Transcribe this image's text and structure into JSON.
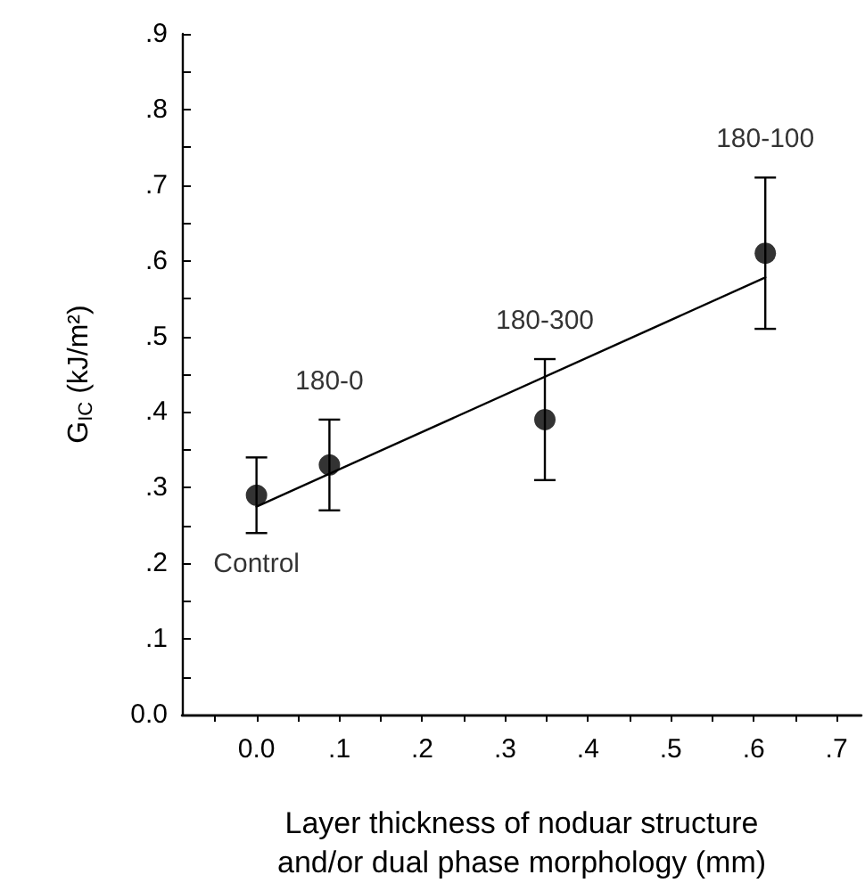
{
  "chart_data": {
    "type": "scatter",
    "xlabel": "Layer thickness of noduar structure\nand/or dual phase morphology (mm)",
    "ylabel": "G$_{IC}$ (kJ/m²)",
    "x": [
      0.0,
      0.088,
      0.348,
      0.614
    ],
    "series": [
      {
        "color": "#000000",
        "marker": "circle",
        "values": [
          0.29,
          0.33,
          0.39,
          0.61
        ],
        "errors": [
          [
            0.24,
            0.34
          ],
          [
            0.27,
            0.39
          ],
          [
            0.31,
            0.47
          ],
          [
            0.51,
            0.71
          ]
        ]
      },
      {
        "type": "line",
        "color": "#000000",
        "marker": "none",
        "line_style": "solid",
        "x": [
          0.0,
          0.614
        ],
        "values": [
          0.275,
          0.578
        ]
      }
    ],
    "annotations": [
      "Control",
      "180-0",
      "180-300",
      "180-100"
    ],
    "xlim": [
      -0.09,
      0.73
    ],
    "xticks": [
      {
        "value": -0.05,
        "label": null
      },
      {
        "value": 0.0,
        "label": "0.0"
      },
      {
        "value": 0.05,
        "label": null
      },
      {
        "value": 0.1,
        "label": ".1"
      },
      {
        "value": 0.15,
        "label": null
      },
      {
        "value": 0.2,
        "label": ".2"
      },
      {
        "value": 0.25,
        "label": null
      },
      {
        "value": 0.3,
        "label": ".3"
      },
      {
        "value": 0.35,
        "label": null
      },
      {
        "value": 0.4,
        "label": ".4"
      },
      {
        "value": 0.45,
        "label": null
      },
      {
        "value": 0.5,
        "label": ".5"
      },
      {
        "value": 0.55,
        "label": null
      },
      {
        "value": 0.6,
        "label": ".6"
      },
      {
        "value": 0.65,
        "label": null
      },
      {
        "value": 0.7,
        "label": ".7"
      }
    ],
    "ylim": [
      0,
      0.9
    ],
    "yticks": [
      {
        "value": 0,
        "label": "0.0"
      },
      {
        "value": 0.05,
        "label": null
      },
      {
        "value": 0.1,
        "label": ".1"
      },
      {
        "value": 0.15,
        "label": null
      },
      {
        "value": 0.2,
        "label": ".2"
      },
      {
        "value": 0.25,
        "label": null
      },
      {
        "value": 0.3,
        "label": ".3"
      },
      {
        "value": 0.35,
        "label": null
      },
      {
        "value": 0.4,
        "label": ".4"
      },
      {
        "value": 0.45,
        "label": null
      },
      {
        "value": 0.5,
        "label": ".5"
      },
      {
        "value": 0.55,
        "label": null
      },
      {
        "value": 0.6,
        "label": ".6"
      },
      {
        "value": 0.65,
        "label": null
      },
      {
        "value": 0.7,
        "label": ".7"
      },
      {
        "value": 0.75,
        "label": null
      },
      {
        "value": 0.8,
        "label": ".8"
      },
      {
        "value": 0.85,
        "label": null
      },
      {
        "value": 0.9,
        "label": ".9"
      }
    ],
    "grid": false
  }
}
